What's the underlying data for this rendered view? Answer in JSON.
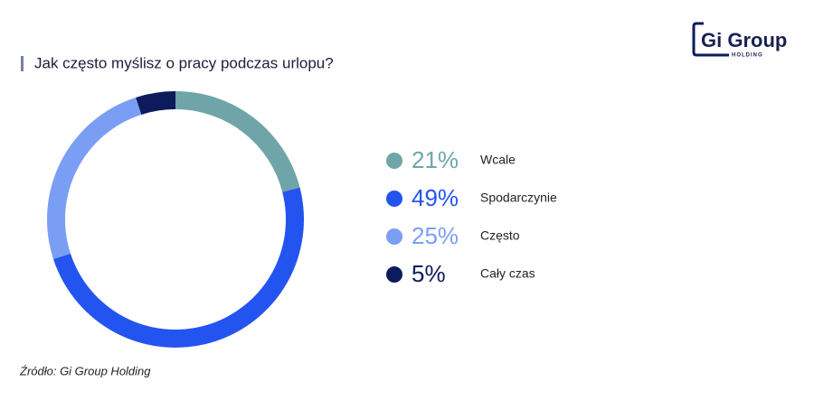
{
  "chart_data": {
    "type": "pie",
    "donut": true,
    "title": "Jak często myślisz o pracy podczas urlopu?",
    "categories": [
      "Wcale",
      "Spodarczynie",
      "Często",
      "Cały czas"
    ],
    "values": [
      21,
      49,
      25,
      5
    ],
    "value_labels": [
      "21%",
      "49%",
      "25%",
      "5%"
    ],
    "colors": [
      "#6fa5a8",
      "#2454f0",
      "#7b9ef5",
      "#0d1a5c"
    ],
    "source": "Źródło: Gi Group Holding"
  },
  "logo": {
    "text": "Gi Group",
    "subtext": "HOLDING"
  }
}
